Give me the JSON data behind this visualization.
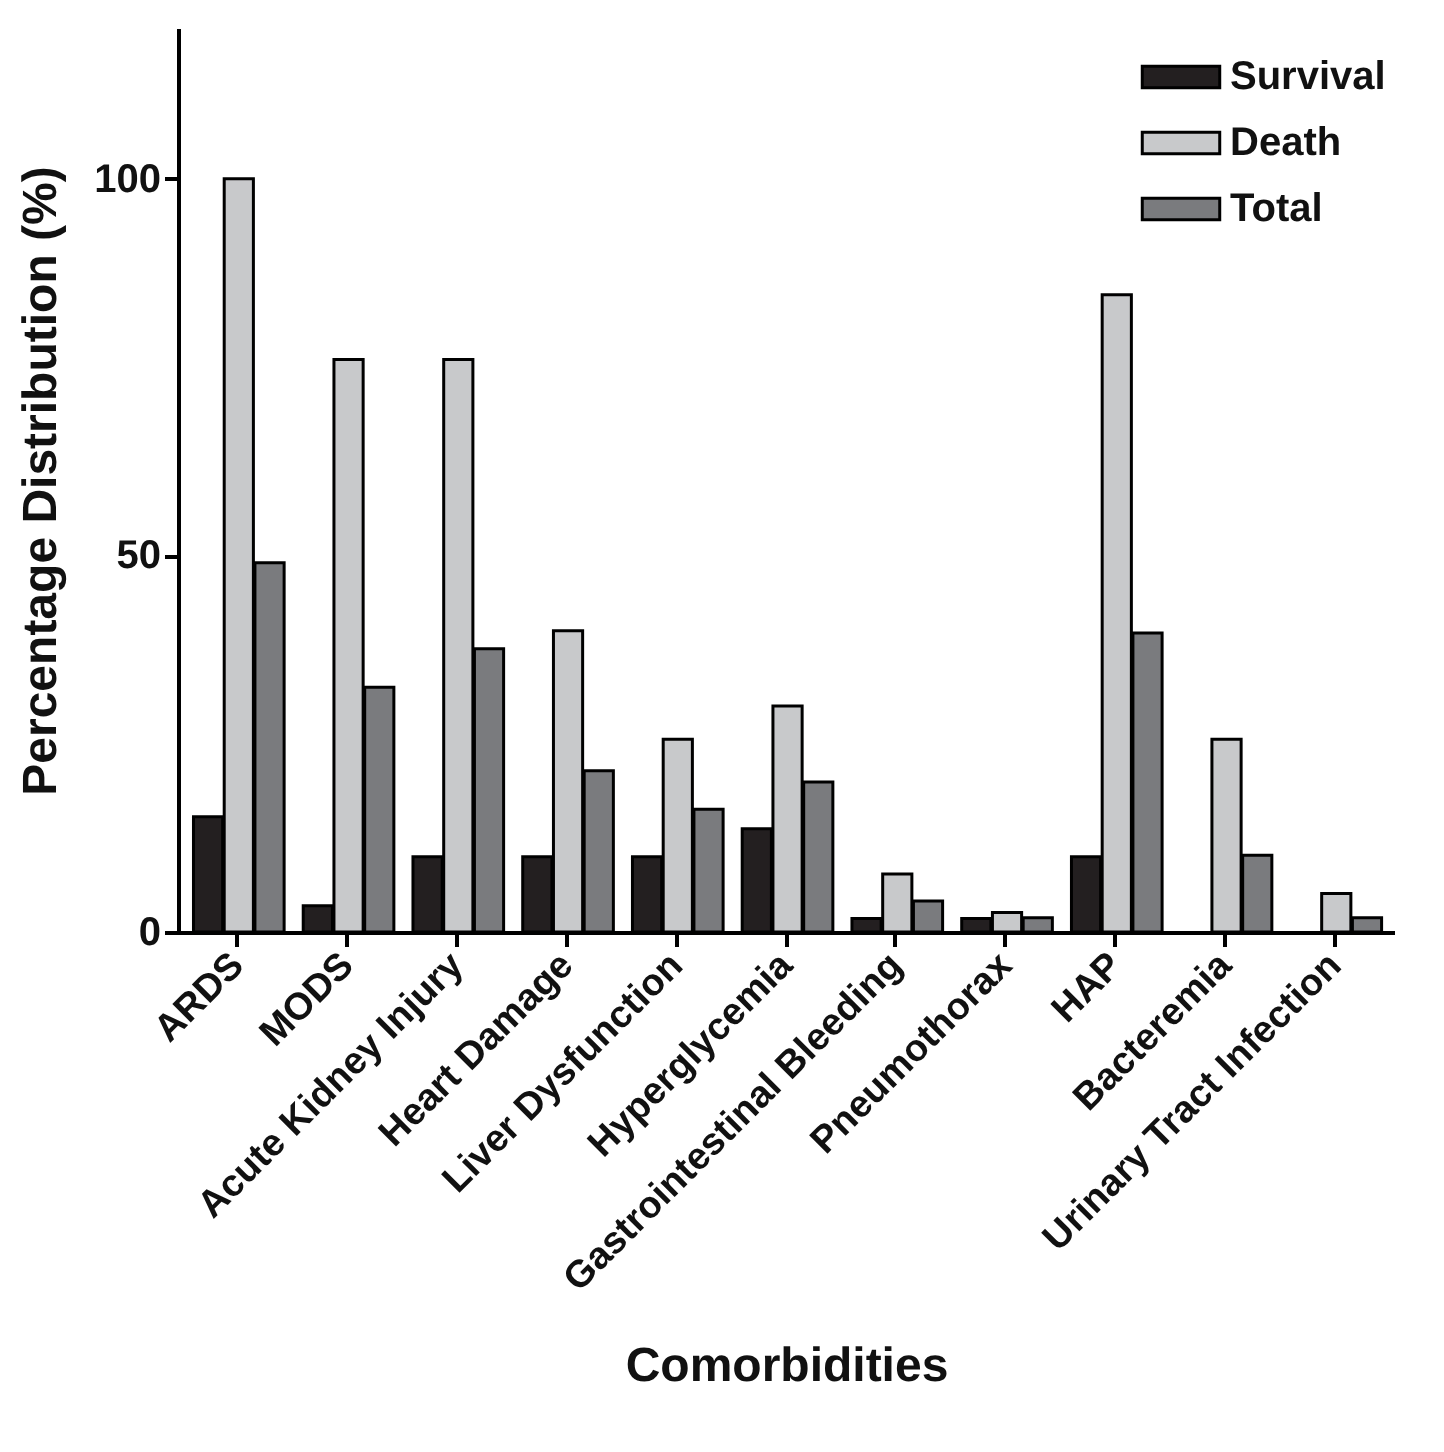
{
  "chart_data": {
    "type": "bar",
    "xlabel": "Comorbidities",
    "ylabel": "Percentage Distribution (%)",
    "categories": [
      "ARDS",
      "MODS",
      "Acute Kidney Injury",
      "Heart Damage",
      "Liver Dysfunction",
      "Hyperglycemia",
      "Gastrointestinal Bleeding",
      "Pneumothorax",
      "HAP",
      "Bacteremia",
      "Urinary Tract Infection"
    ],
    "series": [
      {
        "name": "Survival",
        "color": "#231f20",
        "values": [
          15.3,
          3.5,
          10,
          10,
          10,
          13.7,
          1.8,
          1.8,
          10,
          null,
          null
        ]
      },
      {
        "name": "Death",
        "color": "#c8c9cb",
        "values": [
          100,
          76,
          76,
          40,
          25.6,
          30,
          7.7,
          2.6,
          84.6,
          25.6,
          5.1
        ]
      },
      {
        "name": "Total",
        "color": "#7a7b7e",
        "values": [
          49,
          32.5,
          37.6,
          21.4,
          16.3,
          19.9,
          4.1,
          1.9,
          39.7,
          10.2,
          1.9
        ]
      }
    ],
    "ylim": [
      0,
      120
    ],
    "yticks": [
      0,
      50,
      100
    ],
    "legend": "top right"
  }
}
